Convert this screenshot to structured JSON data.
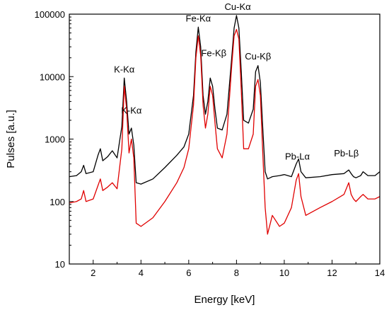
{
  "chart_data": {
    "type": "line",
    "xlabel": "Energy [keV]",
    "ylabel": "Pulses [a.u.]",
    "xlim": [
      1,
      14
    ],
    "ylim": [
      10,
      100000
    ],
    "yscale": "log",
    "grid": false,
    "legend": "none",
    "x_ticks": [
      "2",
      "4",
      "6",
      "8",
      "10",
      "12",
      "14"
    ],
    "y_ticks": [
      "10",
      "100",
      "1000",
      "10000",
      "100000"
    ],
    "annotations": [
      {
        "text": "K-Kα",
        "x": 3.3,
        "y": 10000
      },
      {
        "text": "K-Kα",
        "x": 3.6,
        "y": 2200
      },
      {
        "text": "Fe-Kα",
        "x": 6.4,
        "y": 65000
      },
      {
        "text": "Fe-Kβ",
        "x": 7.05,
        "y": 18000
      },
      {
        "text": "Cu-Kα",
        "x": 8.05,
        "y": 100000
      },
      {
        "text": "Cu-Kβ",
        "x": 8.9,
        "y": 16000
      },
      {
        "text": "Pb-Lα",
        "x": 10.55,
        "y": 400
      },
      {
        "text": "Pb-Lβ",
        "x": 12.6,
        "y": 450
      }
    ],
    "series": [
      {
        "color": "#000000",
        "x": [
          1.0,
          1.3,
          1.5,
          1.6,
          1.7,
          2.0,
          2.2,
          2.3,
          2.4,
          2.6,
          2.8,
          3.0,
          3.2,
          3.3,
          3.4,
          3.5,
          3.6,
          3.7,
          3.8,
          4.0,
          4.5,
          5.0,
          5.5,
          5.8,
          6.0,
          6.2,
          6.3,
          6.4,
          6.5,
          6.6,
          6.7,
          6.8,
          6.9,
          7.0,
          7.1,
          7.2,
          7.4,
          7.6,
          7.8,
          7.9,
          8.0,
          8.1,
          8.2,
          8.3,
          8.5,
          8.7,
          8.8,
          8.9,
          9.0,
          9.1,
          9.2,
          9.3,
          9.5,
          9.8,
          10.0,
          10.3,
          10.5,
          10.6,
          10.7,
          10.9,
          11.5,
          12.0,
          12.5,
          12.7,
          12.8,
          12.9,
          13.0,
          13.2,
          13.3,
          13.5,
          13.8,
          14.0
        ],
        "y": [
          250,
          260,
          300,
          380,
          280,
          300,
          550,
          700,
          450,
          520,
          650,
          500,
          1600,
          9500,
          4000,
          1200,
          1500,
          800,
          200,
          190,
          230,
          350,
          550,
          750,
          1200,
          5000,
          25000,
          62000,
          30000,
          5000,
          2500,
          4000,
          9500,
          7000,
          3000,
          1500,
          1400,
          2500,
          20000,
          60000,
          95000,
          60000,
          12000,
          2000,
          1800,
          3000,
          12000,
          15000,
          8000,
          1500,
          300,
          230,
          250,
          260,
          270,
          250,
          400,
          480,
          300,
          240,
          250,
          270,
          280,
          320,
          280,
          250,
          240,
          260,
          300,
          260,
          260,
          300
        ]
      },
      {
        "color": "#e00000",
        "x": [
          1.0,
          1.3,
          1.5,
          1.6,
          1.7,
          2.0,
          2.2,
          2.3,
          2.4,
          2.6,
          2.8,
          3.0,
          3.2,
          3.3,
          3.4,
          3.5,
          3.6,
          3.7,
          3.8,
          4.0,
          4.5,
          5.0,
          5.5,
          5.8,
          6.0,
          6.2,
          6.3,
          6.4,
          6.5,
          6.6,
          6.7,
          6.8,
          6.9,
          7.0,
          7.1,
          7.2,
          7.4,
          7.6,
          7.8,
          7.9,
          8.0,
          8.1,
          8.2,
          8.3,
          8.5,
          8.7,
          8.8,
          8.9,
          9.0,
          9.1,
          9.2,
          9.3,
          9.5,
          9.8,
          10.0,
          10.3,
          10.5,
          10.6,
          10.7,
          10.9,
          11.5,
          12.0,
          12.5,
          12.7,
          12.8,
          12.9,
          13.0,
          13.2,
          13.3,
          13.5,
          13.8,
          14.0
        ],
        "y": [
          95,
          100,
          110,
          150,
          100,
          110,
          180,
          230,
          150,
          170,
          200,
          160,
          700,
          7000,
          3000,
          600,
          1000,
          500,
          45,
          40,
          55,
          100,
          200,
          350,
          700,
          3500,
          20000,
          45000,
          22000,
          3500,
          1500,
          2500,
          7000,
          5000,
          1800,
          700,
          500,
          1200,
          15000,
          45000,
          57000,
          40000,
          6000,
          700,
          700,
          1200,
          7000,
          9000,
          5000,
          600,
          80,
          30,
          60,
          40,
          45,
          80,
          220,
          280,
          120,
          60,
          80,
          100,
          130,
          200,
          130,
          110,
          100,
          120,
          130,
          110,
          110,
          120
        ]
      }
    ]
  }
}
